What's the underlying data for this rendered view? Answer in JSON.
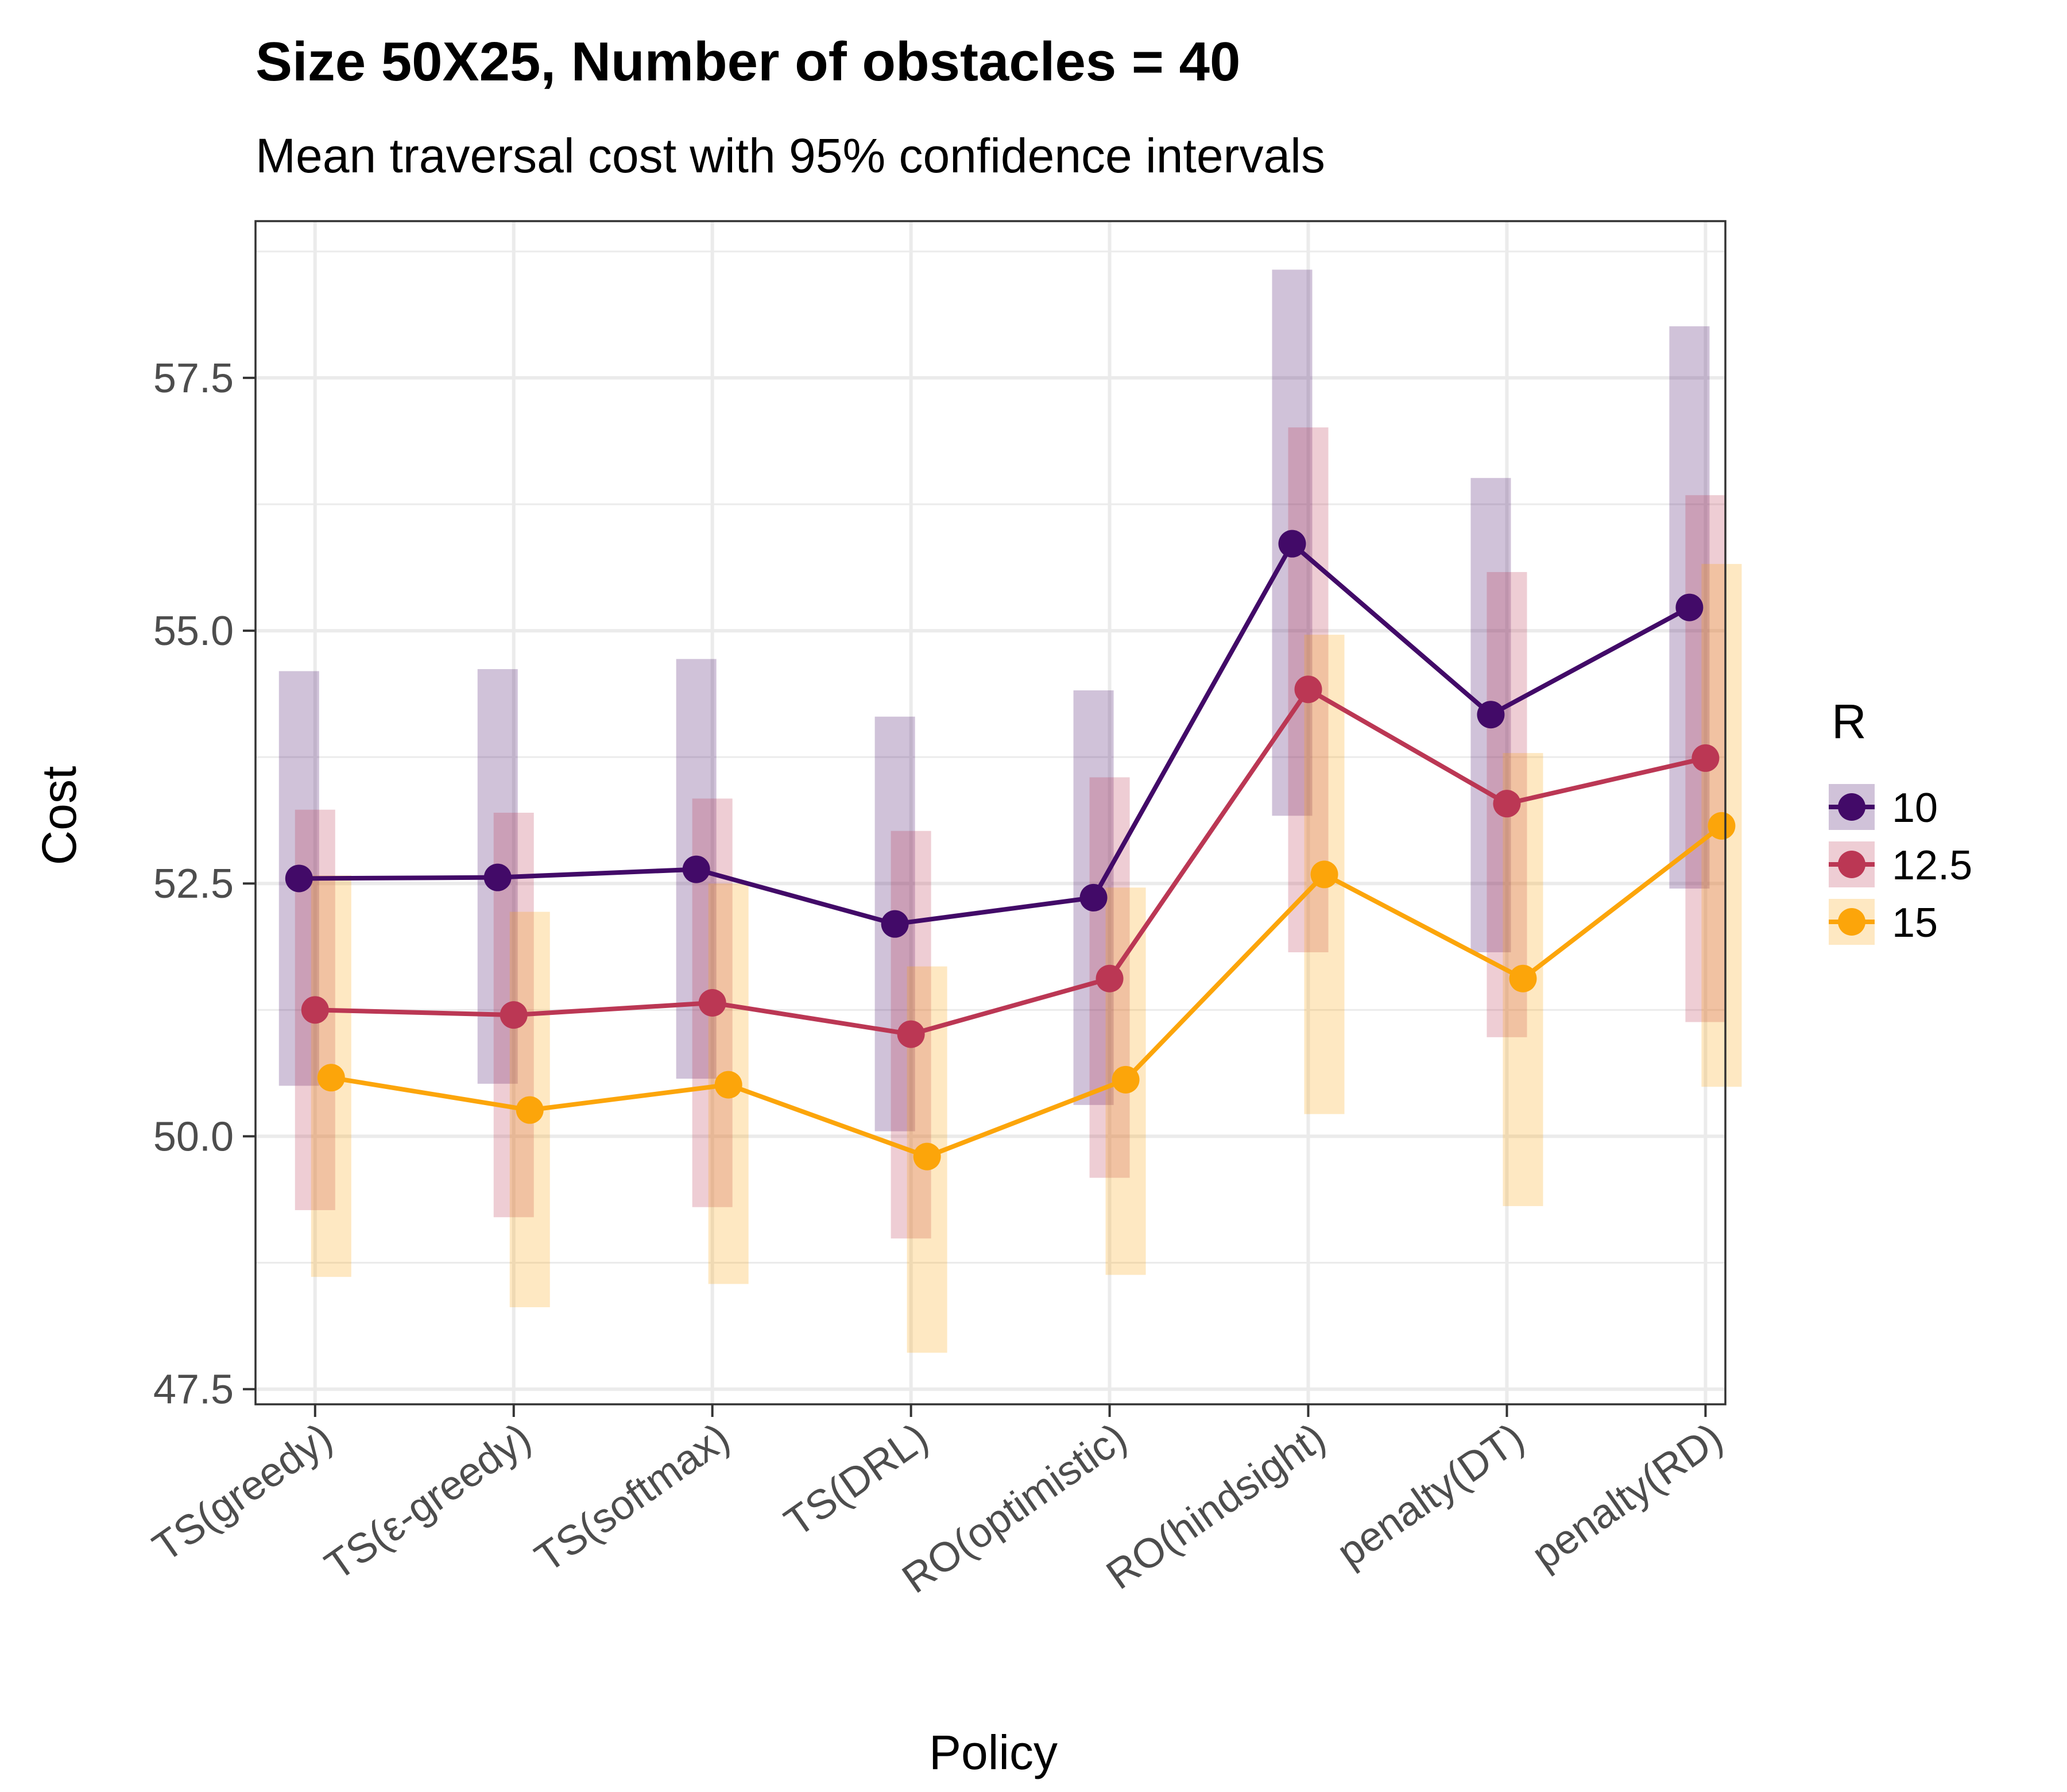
{
  "chart_data": {
    "type": "line",
    "title": "Size 50X25, Number of obstacles = 40",
    "subtitle": "Mean traversal cost with 95% confidence intervals",
    "xlabel": "Policy",
    "ylabel": "Cost",
    "ylim": [
      47.35,
      59.05
    ],
    "yticks": [
      "47.5",
      "50.0",
      "52.5",
      "55.0",
      "57.5"
    ],
    "grid": true,
    "categories": [
      "TS(greedy)",
      "TS(ε-greedy)",
      "TS(softmax)",
      "TS(DRL)",
      "RO(optimistic)",
      "RO(hindsight)",
      "penalty(DT)",
      "penalty(RD)"
    ],
    "legend": {
      "title": "R",
      "position": "right"
    },
    "series": [
      {
        "name": "10",
        "color": "#420a68",
        "values": [
          52.55,
          52.56,
          52.64,
          52.1,
          52.36,
          55.86,
          54.17,
          55.23
        ],
        "lower": [
          50.5,
          50.52,
          50.57,
          50.05,
          50.31,
          53.17,
          51.82,
          52.45
        ],
        "upper": [
          54.6,
          54.62,
          54.72,
          54.15,
          54.41,
          58.57,
          56.51,
          58.01
        ]
      },
      {
        "name": "12.5",
        "color": "#bb3754",
        "values": [
          51.25,
          51.2,
          51.32,
          51.01,
          51.56,
          54.42,
          53.29,
          53.74
        ],
        "lower": [
          49.27,
          49.2,
          49.3,
          48.99,
          49.59,
          51.82,
          50.98,
          51.13
        ],
        "upper": [
          53.23,
          53.2,
          53.34,
          53.02,
          53.55,
          57.01,
          55.58,
          56.34
        ]
      },
      {
        "name": "15",
        "color": "#fca50a",
        "values": [
          50.58,
          50.26,
          50.51,
          49.8,
          50.56,
          52.59,
          51.56,
          53.07
        ],
        "lower": [
          48.61,
          48.31,
          48.54,
          47.86,
          48.63,
          50.22,
          49.31,
          50.49
        ],
        "upper": [
          52.58,
          52.22,
          52.5,
          51.68,
          52.46,
          54.96,
          53.79,
          55.66
        ]
      }
    ]
  }
}
